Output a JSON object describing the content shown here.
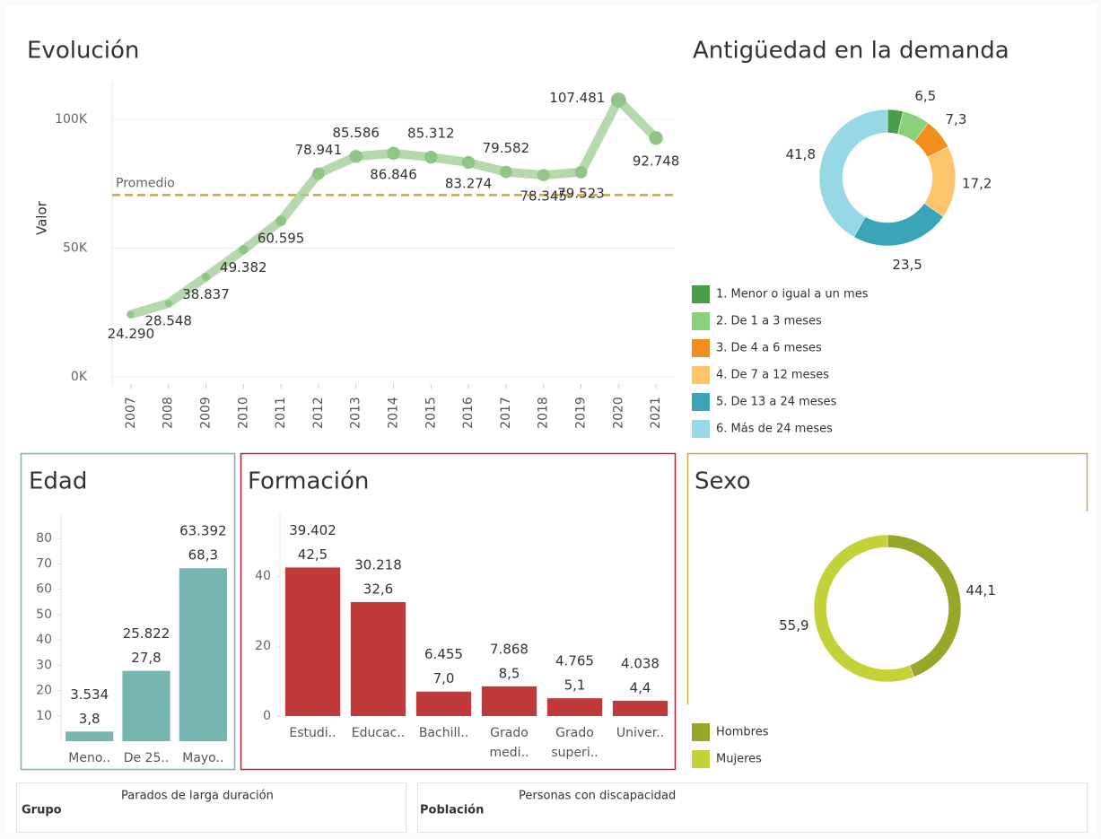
{
  "chart_data": [
    {
      "type": "line",
      "title": "Evolución",
      "y_label": "Valor",
      "categories": [
        "2007",
        "2008",
        "2009",
        "2010",
        "2011",
        "2012",
        "2013",
        "2014",
        "2015",
        "2016",
        "2017",
        "2018",
        "2019",
        "2020",
        "2021"
      ],
      "values": [
        24290,
        28548,
        38837,
        49382,
        60595,
        78941,
        85586,
        86846,
        85312,
        83274,
        79582,
        78345,
        79523,
        107481,
        92748
      ],
      "value_labels": [
        "24.290",
        "28.548",
        "38.837",
        "49.382",
        "60.595",
        "78.941",
        "85.586",
        "86.846",
        "85.312",
        "83.274",
        "79.582",
        "78.345",
        "79.523",
        "107.481",
        "92.748"
      ],
      "color": "#a3cf98",
      "ylim": [
        0,
        115000
      ],
      "yticks": [
        {
          "value": 0,
          "label": "0K"
        },
        {
          "value": 50000,
          "label": "50K"
        },
        {
          "value": 100000,
          "label": "100K"
        }
      ],
      "grid": true,
      "reference": {
        "label": "Promedio",
        "value": 70619,
        "color": "#c9a84e"
      }
    },
    {
      "type": "pie",
      "title": "Antigüedad en la demanda",
      "categories": [
        "1. Menor o igual a un mes",
        "2. De 1 a 3 meses",
        "3. De 4 a 6 meses",
        "4. De 7 a 12 meses",
        "5. De 13 a 24 meses",
        "6. Más de 24 meses"
      ],
      "values": [
        3.7,
        6.5,
        7.3,
        17.2,
        23.5,
        41.8
      ],
      "value_labels": [
        null,
        "6,5",
        "7,3",
        "17,2",
        "23,5",
        "41,8"
      ],
      "colors": [
        "#4a9e4a",
        "#8bd17c",
        "#f28e1c",
        "#fcc46b",
        "#3aa5b8",
        "#96d8e4"
      ]
    },
    {
      "type": "bar",
      "title": "Edad",
      "categories": [
        "Meno..",
        "De 25..",
        "Mayo.."
      ],
      "values": [
        3.8,
        27.8,
        68.3
      ],
      "value_labels": [
        "3,8",
        "27,8",
        "68,3"
      ],
      "counts": [
        3534,
        25822,
        63392
      ],
      "count_labels": [
        "3.534",
        "25.822",
        "63.392"
      ],
      "color": "#76b5b0",
      "ylim": [
        0,
        90
      ],
      "yticks": [
        10,
        20,
        30,
        40,
        50,
        60,
        70,
        80
      ]
    },
    {
      "type": "bar",
      "title": "Formación",
      "categories": [
        "Estudi..",
        "Educac..",
        "Bachill..",
        "Grado medi..",
        "Grado superi..",
        "Univer.."
      ],
      "values": [
        42.5,
        32.6,
        7.0,
        8.5,
        5.1,
        4.4
      ],
      "value_labels": [
        "42,5",
        "32,6",
        "7,0",
        "8,5",
        "5,1",
        "4,4"
      ],
      "counts": [
        39402,
        30218,
        6455,
        7868,
        4765,
        4038
      ],
      "count_labels": [
        "39.402",
        "30.218",
        "6.455",
        "7.868",
        "4.765",
        "4.038"
      ],
      "color": "#c0393b",
      "ylim": [
        0,
        58
      ],
      "yticks": [
        0,
        20,
        40
      ]
    },
    {
      "type": "pie",
      "title": "Sexo",
      "categories": [
        "Hombres",
        "Mujeres"
      ],
      "values": [
        44.1,
        55.9
      ],
      "value_labels": [
        "44,1",
        "55,9"
      ],
      "colors": [
        "#98a62a",
        "#c4d23a"
      ]
    }
  ],
  "filters": [
    {
      "label": "Grupo",
      "value": "Parados de larga duración"
    },
    {
      "label": "Población",
      "value": "Personas con discapacidad"
    }
  ]
}
